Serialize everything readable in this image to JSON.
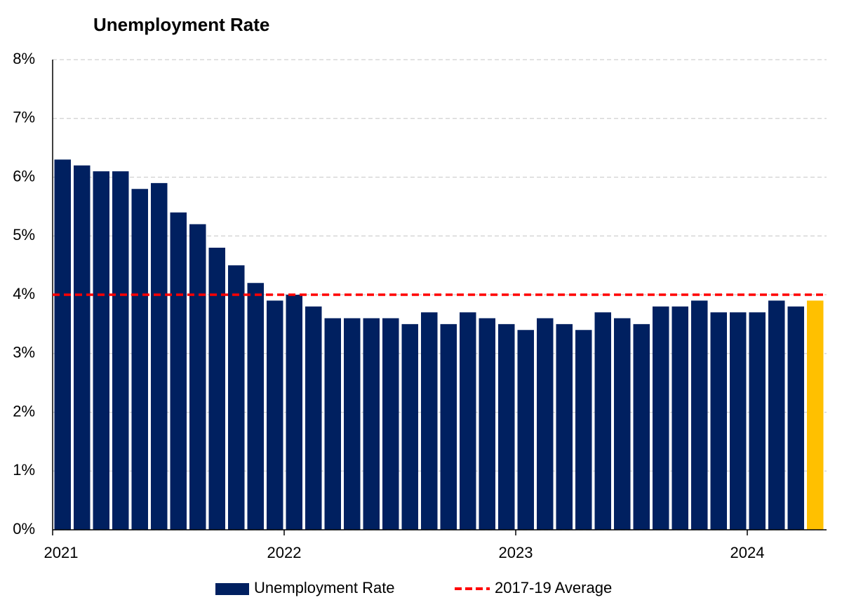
{
  "chart_data": {
    "type": "bar",
    "title": "Unemployment Rate",
    "categories": [
      "2021",
      null,
      null,
      null,
      null,
      null,
      null,
      null,
      null,
      null,
      null,
      null,
      "2022",
      null,
      null,
      null,
      null,
      null,
      null,
      null,
      null,
      null,
      null,
      null,
      "2023",
      null,
      null,
      null,
      null,
      null,
      null,
      null,
      null,
      null,
      null,
      null,
      "2024",
      null,
      null,
      null
    ],
    "series": [
      {
        "name": "Unemployment Rate",
        "color": "#002060",
        "values": [
          6.3,
          6.2,
          6.1,
          6.1,
          5.8,
          5.9,
          5.4,
          5.2,
          4.8,
          4.5,
          4.2,
          3.9,
          4.0,
          3.8,
          3.6,
          3.6,
          3.6,
          3.6,
          3.5,
          3.7,
          3.5,
          3.7,
          3.6,
          3.5,
          3.4,
          3.6,
          3.5,
          3.4,
          3.7,
          3.6,
          3.5,
          3.8,
          3.8,
          3.9,
          3.7,
          3.7,
          3.7,
          3.9,
          3.8,
          3.9
        ],
        "colors": [
          "#002060",
          "#002060",
          "#002060",
          "#002060",
          "#002060",
          "#002060",
          "#002060",
          "#002060",
          "#002060",
          "#002060",
          "#002060",
          "#002060",
          "#002060",
          "#002060",
          "#002060",
          "#002060",
          "#002060",
          "#002060",
          "#002060",
          "#002060",
          "#002060",
          "#002060",
          "#002060",
          "#002060",
          "#002060",
          "#002060",
          "#002060",
          "#002060",
          "#002060",
          "#002060",
          "#002060",
          "#002060",
          "#002060",
          "#002060",
          "#002060",
          "#002060",
          "#002060",
          "#002060",
          "#002060",
          "#ffc000"
        ]
      }
    ],
    "reference_lines": [
      {
        "name": "2017-19 Average",
        "value": 4,
        "color": "#ff0000"
      }
    ],
    "ylim": [
      0,
      8
    ],
    "yticks": [
      {
        "value": 0,
        "label": "0%"
      },
      {
        "value": 1,
        "label": "1%"
      },
      {
        "value": 2,
        "label": "2%"
      },
      {
        "value": 3,
        "label": "3%"
      },
      {
        "value": 4,
        "label": "4%"
      },
      {
        "value": 5,
        "label": "5%"
      },
      {
        "value": 6,
        "label": "6%"
      },
      {
        "value": 7,
        "label": "7%"
      },
      {
        "value": 8,
        "label": "8%"
      }
    ],
    "grid": true,
    "legend": "bottom"
  }
}
